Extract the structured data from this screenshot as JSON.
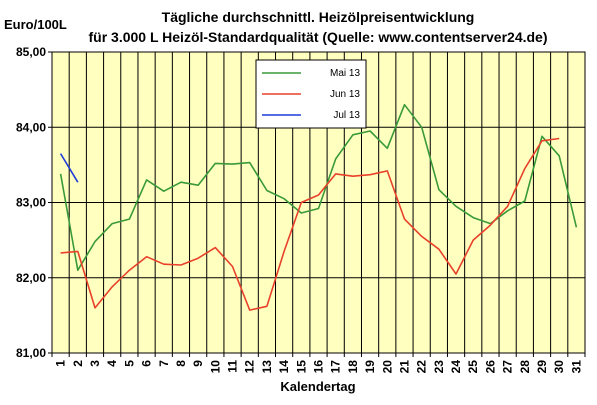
{
  "chart_data": {
    "type": "line",
    "title": "Tägliche durchschnittl. Heizölpreisentwicklung",
    "subtitle": "für 3.000 L Heizöl-Standardqualität (Quelle: www.contentserver24.de)",
    "ylabel": "Euro/100L",
    "xlabel": "Kalendertag",
    "x": [
      1,
      2,
      3,
      4,
      5,
      6,
      7,
      8,
      9,
      10,
      11,
      12,
      13,
      14,
      15,
      16,
      17,
      18,
      19,
      20,
      21,
      22,
      23,
      24,
      25,
      26,
      27,
      28,
      29,
      30,
      31
    ],
    "xlim": [
      1,
      31
    ],
    "ylim": [
      81,
      85
    ],
    "yticks": [
      81,
      82,
      83,
      84,
      85
    ],
    "ytick_labels": [
      "81,00",
      "82,00",
      "83,00",
      "84,00",
      "85,00"
    ],
    "xtick_labels": [
      "1",
      "2",
      "3",
      "4",
      "5",
      "6",
      "7",
      "8",
      "9",
      "10",
      "11",
      "12",
      "13",
      "14",
      "15",
      "16",
      "17",
      "18",
      "19",
      "20",
      "21",
      "22",
      "23",
      "24",
      "25",
      "26",
      "27",
      "28",
      "29",
      "30",
      "31"
    ],
    "grid": true,
    "legend_position": "top-center",
    "background_color": "#ffffc0",
    "series": [
      {
        "name": "Mai 13",
        "color": "#3a9a3a",
        "x": [
          1,
          2,
          3,
          4,
          5,
          6,
          7,
          8,
          9,
          10,
          11,
          12,
          13,
          14,
          15,
          16,
          17,
          18,
          19,
          20,
          21,
          22,
          23,
          24,
          25,
          26,
          27,
          28,
          29,
          30,
          31
        ],
        "values": [
          83.38,
          82.1,
          82.48,
          82.72,
          82.78,
          83.3,
          83.15,
          83.27,
          83.23,
          83.52,
          83.51,
          83.53,
          83.16,
          83.05,
          82.86,
          82.92,
          83.58,
          83.9,
          83.95,
          83.72,
          84.3,
          84.0,
          83.17,
          82.95,
          82.8,
          82.72,
          82.89,
          83.02,
          83.88,
          83.62,
          82.67
        ]
      },
      {
        "name": "Jun 13",
        "color": "#e8412a",
        "x": [
          1,
          2,
          3,
          4,
          5,
          6,
          7,
          8,
          9,
          10,
          11,
          12,
          13,
          14,
          15,
          16,
          17,
          18,
          19,
          20,
          21,
          22,
          23,
          24,
          25,
          26,
          27,
          28,
          29,
          30
        ],
        "values": [
          82.33,
          82.35,
          81.6,
          81.88,
          82.1,
          82.28,
          82.18,
          82.17,
          82.26,
          82.4,
          82.15,
          81.57,
          81.62,
          82.35,
          83.0,
          83.1,
          83.38,
          83.35,
          83.37,
          83.42,
          82.78,
          82.55,
          82.38,
          82.05,
          82.5,
          82.7,
          82.95,
          83.45,
          83.82,
          83.85
        ]
      },
      {
        "name": "Jul 13",
        "color": "#1f3cd8",
        "x": [
          1,
          2
        ],
        "values": [
          83.65,
          83.27
        ]
      }
    ]
  }
}
